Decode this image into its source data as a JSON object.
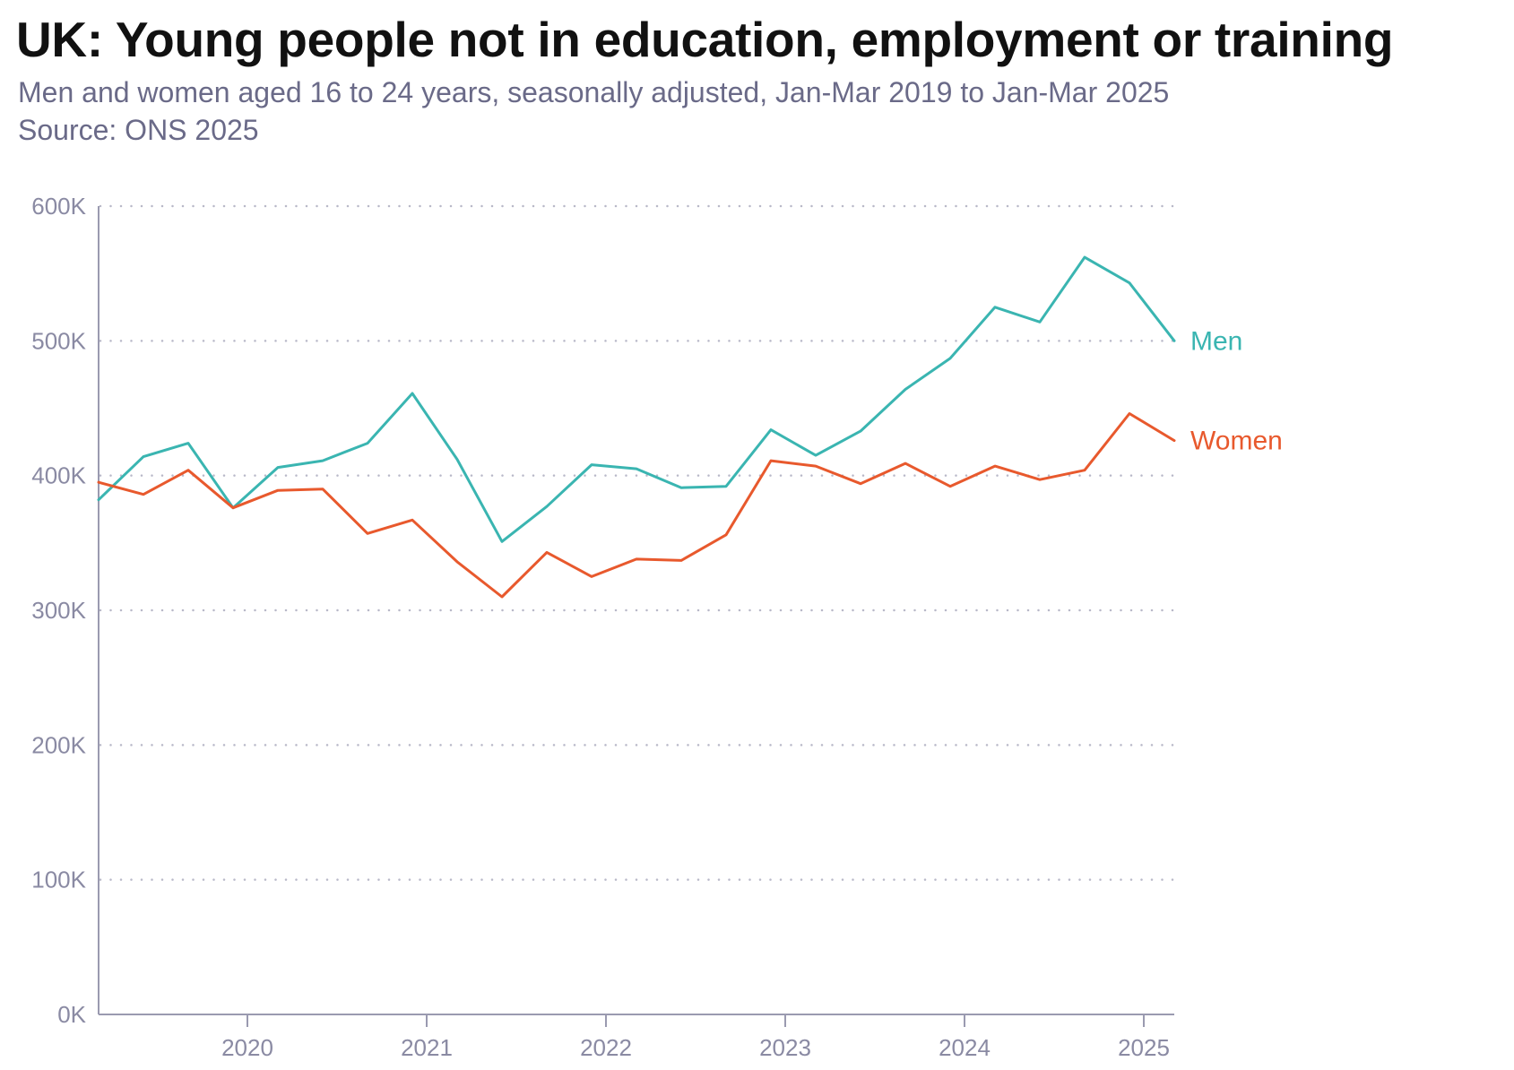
{
  "chart_data": {
    "type": "line",
    "title": "UK: Young people not in education, employment or training",
    "subtitle": "Men and women aged 16 to 24 years, seasonally adjusted, Jan-Mar 2019 to Jan-Mar 2025",
    "source": "Source: ONS 2025",
    "xlabel": "",
    "ylabel": "",
    "x": [
      2019.17,
      2019.42,
      2019.67,
      2019.92,
      2020.17,
      2020.42,
      2020.67,
      2020.92,
      2021.17,
      2021.42,
      2021.67,
      2021.92,
      2022.17,
      2022.42,
      2022.67,
      2022.92,
      2023.17,
      2023.42,
      2023.67,
      2023.92,
      2024.17,
      2024.42,
      2024.67,
      2024.92,
      2025.17
    ],
    "xlim": [
      2019.17,
      2025.17
    ],
    "ylim": [
      0,
      600000
    ],
    "x_ticks": [
      2020,
      2021,
      2022,
      2023,
      2024,
      2025
    ],
    "x_tick_labels": [
      "2020",
      "2021",
      "2022",
      "2023",
      "2024",
      "2025"
    ],
    "y_ticks": [
      0,
      100000,
      200000,
      300000,
      400000,
      500000,
      600000
    ],
    "y_tick_labels": [
      "0K",
      "100K",
      "200K",
      "300K",
      "400K",
      "500K",
      "600K"
    ],
    "grid": "horizontal dotted",
    "series": [
      {
        "name": "Men",
        "color": "#3ab5b1",
        "values": [
          382000,
          414000,
          424000,
          376000,
          406000,
          411000,
          424000,
          461000,
          412000,
          351000,
          377000,
          408000,
          405000,
          391000,
          392000,
          434000,
          415000,
          433000,
          464000,
          487000,
          525000,
          514000,
          562000,
          543000,
          500000
        ]
      },
      {
        "name": "Women",
        "color": "#e8592d",
        "values": [
          395000,
          386000,
          404000,
          376000,
          389000,
          390000,
          357000,
          367000,
          336000,
          310000,
          343000,
          325000,
          338000,
          337000,
          356000,
          411000,
          407000,
          394000,
          409000,
          392000,
          407000,
          397000,
          404000,
          446000,
          426000
        ]
      }
    ]
  }
}
